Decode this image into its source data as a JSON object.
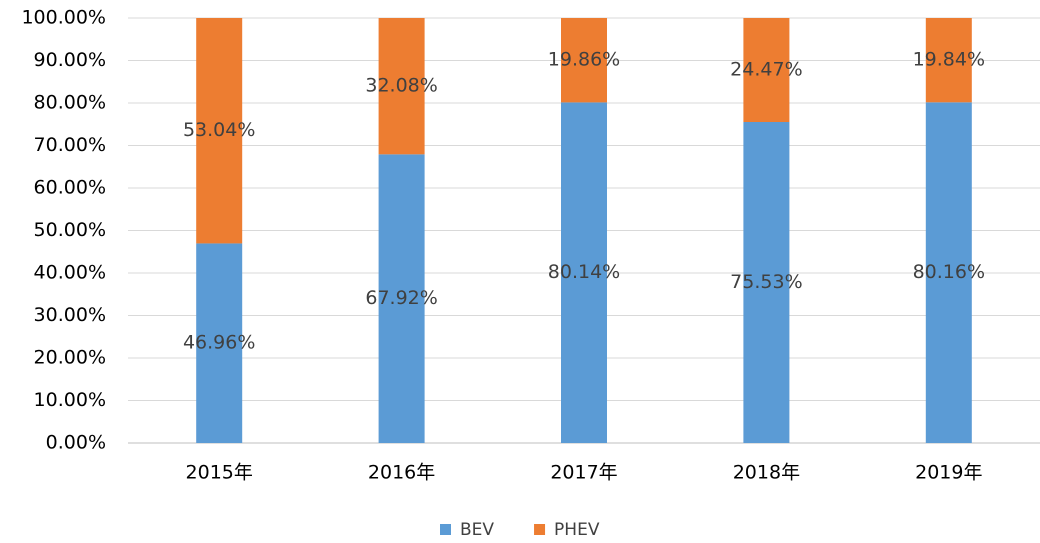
{
  "chart_data": {
    "type": "stacked_bar",
    "categories": [
      "2015年",
      "2016年",
      "2017年",
      "2018年",
      "2019年"
    ],
    "series": [
      {
        "name": "BEV",
        "color": "#5b9bd5",
        "values": [
          46.96,
          67.92,
          80.14,
          75.53,
          80.16
        ],
        "value_labels": [
          "46.96%",
          "67.92%",
          "80.14%",
          "75.53%",
          "80.16%"
        ]
      },
      {
        "name": "PHEV",
        "color": "#ed7d31",
        "values": [
          53.04,
          32.08,
          19.86,
          24.47,
          19.84
        ],
        "value_labels": [
          "53.04%",
          "32.08%",
          "19.86%",
          "24.47%",
          "19.84%"
        ]
      }
    ],
    "ylim": [
      0,
      100
    ],
    "yticks": [
      {
        "value": 0,
        "label": "0.00%"
      },
      {
        "value": 10,
        "label": "10.00%"
      },
      {
        "value": 20,
        "label": "20.00%"
      },
      {
        "value": 30,
        "label": "30.00%"
      },
      {
        "value": 40,
        "label": "40.00%"
      },
      {
        "value": 50,
        "label": "50.00%"
      },
      {
        "value": 60,
        "label": "60.00%"
      },
      {
        "value": 70,
        "label": "70.00%"
      },
      {
        "value": 80,
        "label": "80.00%"
      },
      {
        "value": 90,
        "label": "90.00%"
      },
      {
        "value": 100,
        "label": "100.00%"
      }
    ],
    "grid": true,
    "legend": "bottom"
  }
}
